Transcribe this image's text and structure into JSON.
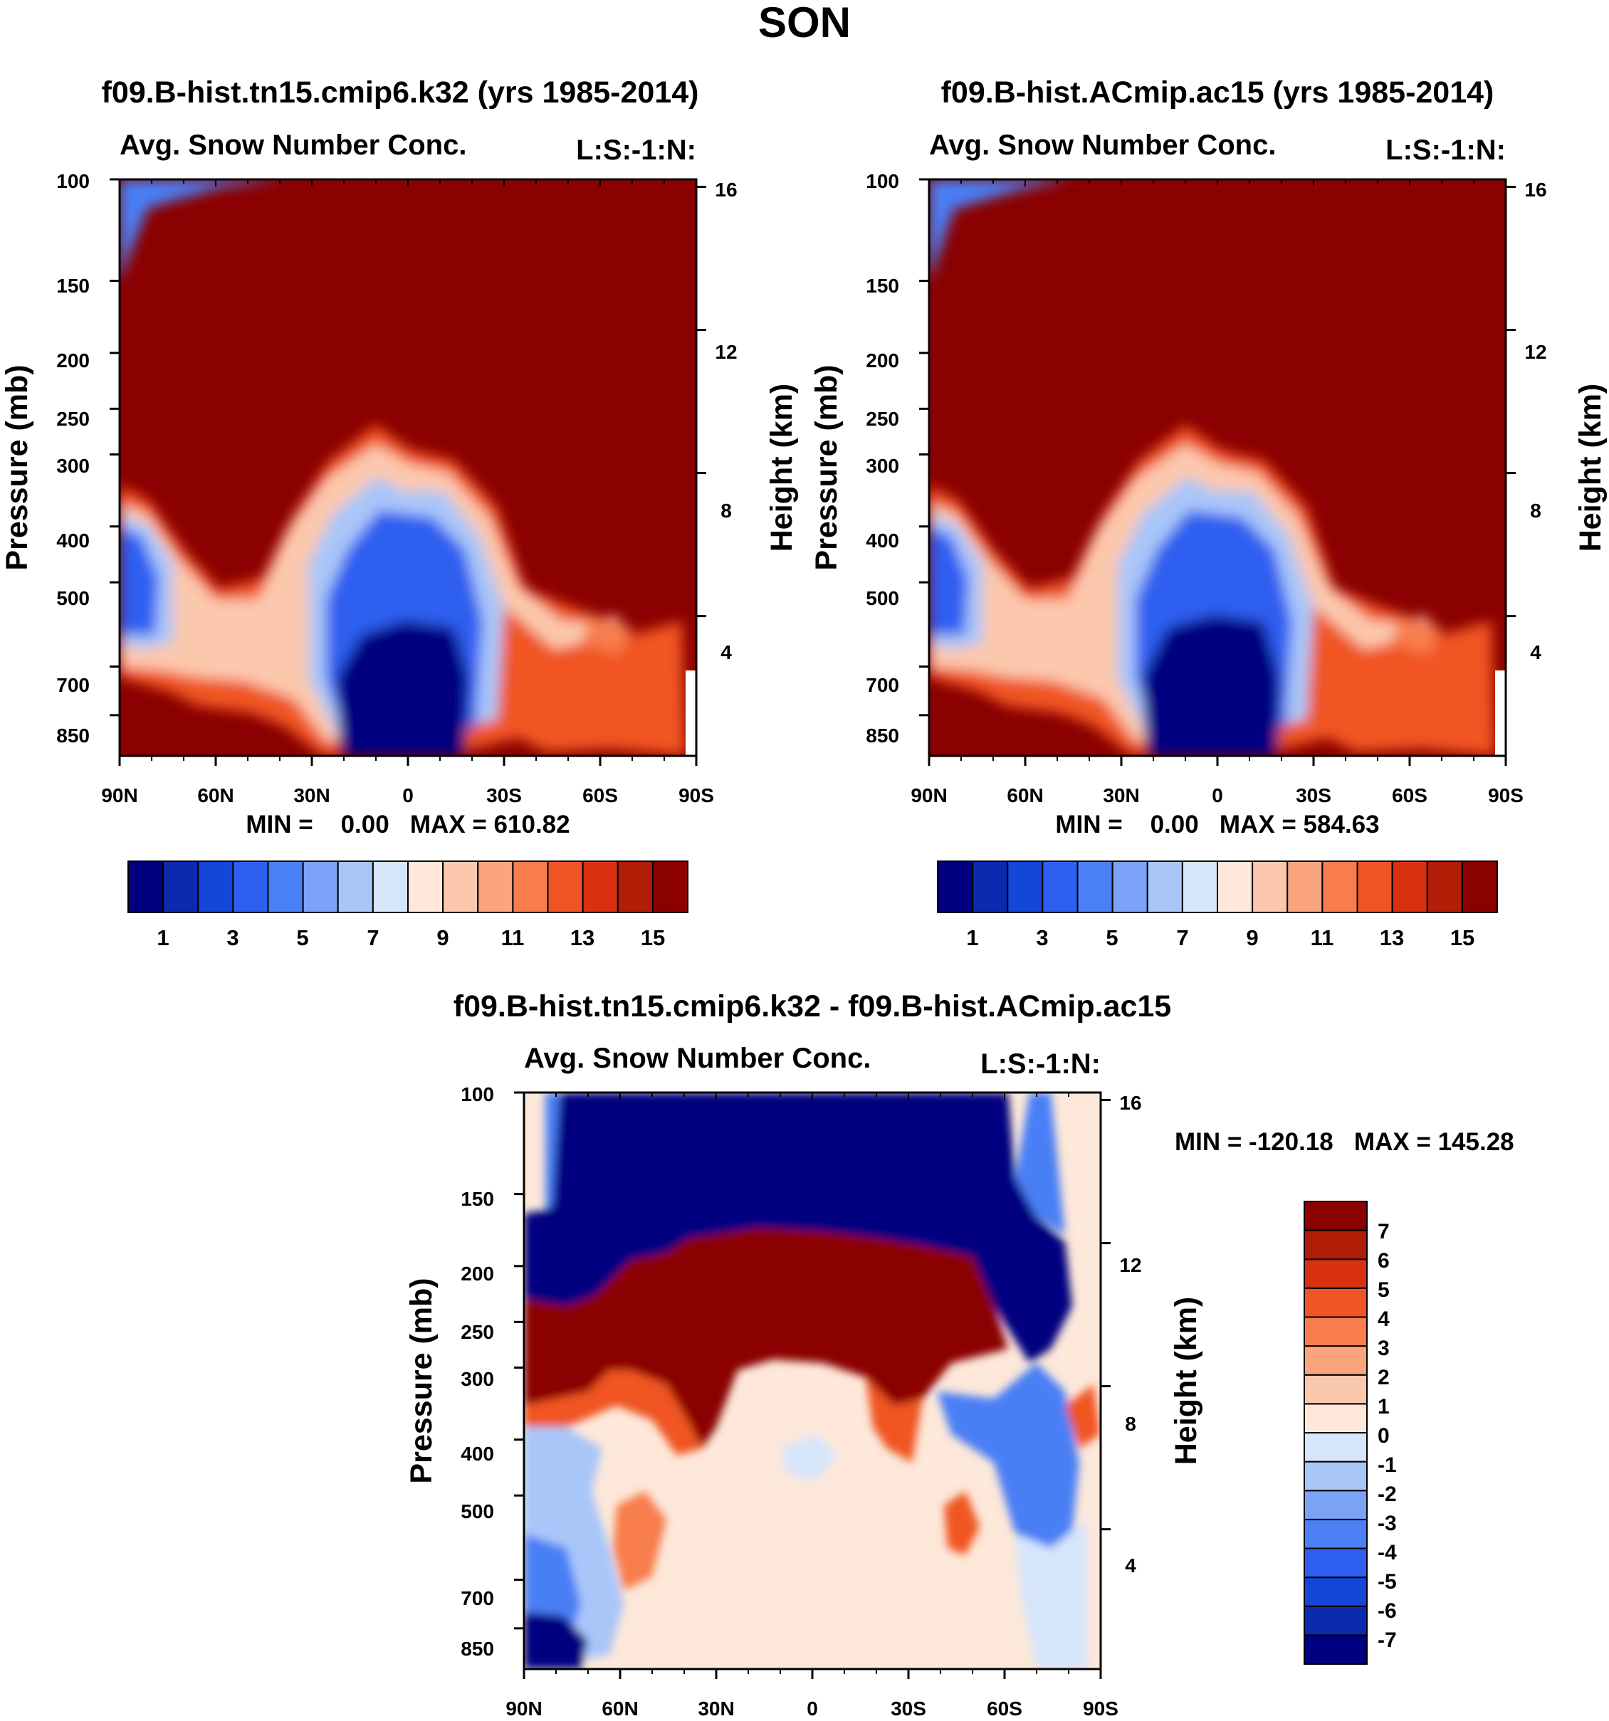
{
  "main_title": "SON",
  "chart_data": [
    {
      "id": "p1",
      "type": "heatmap",
      "title": "f09.B-hist.tn15.cmip6.k32 (yrs 1985-2014)",
      "subtitle_left": "Avg. Snow Number Conc.",
      "subtitle_right": "L:S:-1:N:",
      "ylabel": "Pressure (mb)",
      "ylabel_right": "Height (km)",
      "x_ticks": [
        "90N",
        "60N",
        "30N",
        "0",
        "30S",
        "60S",
        "90S"
      ],
      "x_range": [
        90,
        -90
      ],
      "y_ticks": [
        100,
        150,
        200,
        250,
        300,
        400,
        500,
        700,
        850
      ],
      "y_range": [
        100,
        1000
      ],
      "height_ticks": [
        16,
        12,
        8,
        4
      ],
      "min": "0.00",
      "max": "610.82",
      "stats_text": "MIN =    0.00   MAX = 610.82",
      "colorbar_labels": [
        "1",
        "3",
        "5",
        "7",
        "9",
        "11",
        "13",
        "15"
      ],
      "levels": [
        1,
        2,
        3,
        4,
        5,
        6,
        7,
        8,
        9,
        10,
        11,
        12,
        13,
        14,
        15
      ]
    },
    {
      "id": "p2",
      "type": "heatmap",
      "title": "f09.B-hist.ACmip.ac15 (yrs 1985-2014)",
      "subtitle_left": "Avg. Snow Number Conc.",
      "subtitle_right": "L:S:-1:N:",
      "ylabel": "Pressure (mb)",
      "ylabel_right": "Height (km)",
      "x_ticks": [
        "90N",
        "60N",
        "30N",
        "0",
        "30S",
        "60S",
        "90S"
      ],
      "x_range": [
        90,
        -90
      ],
      "y_ticks": [
        100,
        150,
        200,
        250,
        300,
        400,
        500,
        700,
        850
      ],
      "y_range": [
        100,
        1000
      ],
      "height_ticks": [
        16,
        12,
        8,
        4
      ],
      "min": "0.00",
      "max": "584.63",
      "stats_text": "MIN =    0.00   MAX = 584.63",
      "colorbar_labels": [
        "1",
        "3",
        "5",
        "7",
        "9",
        "11",
        "13",
        "15"
      ],
      "levels": [
        1,
        2,
        3,
        4,
        5,
        6,
        7,
        8,
        9,
        10,
        11,
        12,
        13,
        14,
        15
      ]
    },
    {
      "id": "p3",
      "type": "heatmap",
      "title": "f09.B-hist.tn15.cmip6.k32 - f09.B-hist.ACmip.ac15",
      "subtitle_left": "Avg. Snow Number Conc.",
      "subtitle_right": "L:S:-1:N:",
      "ylabel": "Pressure (mb)",
      "ylabel_right": "Height (km)",
      "x_ticks": [
        "90N",
        "60N",
        "30N",
        "0",
        "30S",
        "60S",
        "90S"
      ],
      "x_range": [
        90,
        -90
      ],
      "y_ticks": [
        100,
        150,
        200,
        250,
        300,
        400,
        500,
        700,
        850
      ],
      "y_range": [
        100,
        1000
      ],
      "height_ticks": [
        16,
        12,
        8,
        4
      ],
      "min": "-120.18",
      "max": "145.28",
      "stats_text": "MIN = -120.18   MAX = 145.28",
      "colorbar_labels": [
        "7",
        "6",
        "5",
        "4",
        "3",
        "2",
        "1",
        "0",
        "-1",
        "-2",
        "-3",
        "-4",
        "-5",
        "-6",
        "-7"
      ],
      "levels": [
        -7,
        -6,
        -5,
        -4,
        -3,
        -2,
        -1,
        0,
        1,
        2,
        3,
        4,
        5,
        6,
        7
      ]
    }
  ],
  "palette_16": [
    "#000080",
    "#0a2ab0",
    "#1446d8",
    "#2f5ff0",
    "#4a7ff5",
    "#7aa3f7",
    "#a9c6f9",
    "#d5e6fb",
    "#fde8da",
    "#fcc8ad",
    "#fba57e",
    "#f87d4d",
    "#f05424",
    "#d83010",
    "#b01e08",
    "#8b0000"
  ]
}
